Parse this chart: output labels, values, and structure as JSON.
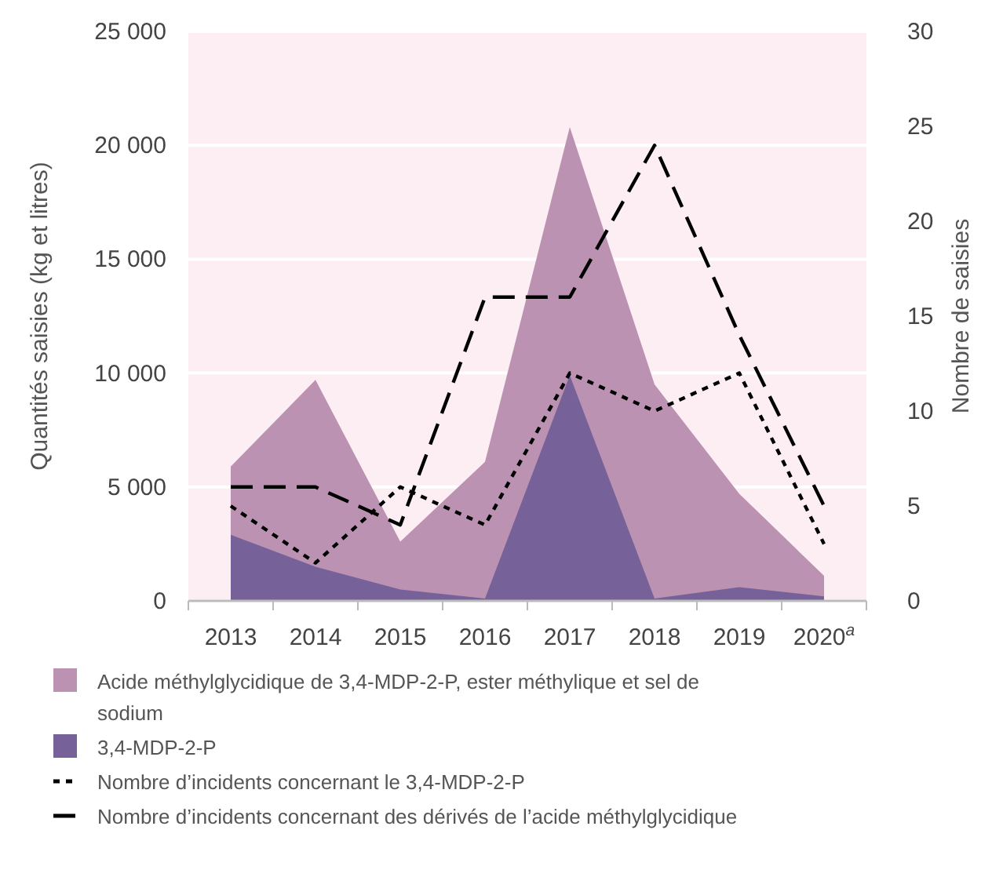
{
  "chart_data": {
    "type": "area",
    "ylabel": "Quantités saisies (kg et litres)",
    "y2label": "Nombre de saisies",
    "categories": [
      "2013",
      "2014",
      "2015",
      "2016",
      "2017",
      "2018",
      "2019",
      "2020$^{a}$"
    ],
    "series": [
      {
        "name": "Acide méthylglycidique de 3,4-MDP-2-P, ester méthylique et sel de sodium",
        "color": "#bb92b1",
        "values": [
          5900,
          9700,
          2600,
          6100,
          20800,
          9500,
          4700,
          1100
        ]
      },
      {
        "name": "3,4-MDP-2-P",
        "color": "#766299",
        "values": [
          2900,
          1500,
          500,
          100,
          9900,
          100,
          600,
          200
        ]
      },
      {
        "name": "Nombre d’incidents concernant le 3,4-MDP-2-P",
        "type": "line",
        "axis": "y2",
        "color": "#000000",
        "line_style": "dotted",
        "values": [
          5,
          2,
          6,
          4,
          12,
          10,
          12,
          3
        ]
      },
      {
        "name": "Nombre d’incidents concernant des dérivés de l’acide méthylglycidique",
        "type": "line",
        "axis": "y2",
        "color": "#000000",
        "line_style": "dashed",
        "values": [
          6,
          6,
          4,
          16,
          16,
          24,
          14,
          5
        ]
      }
    ],
    "ylim": [
      0,
      25000
    ],
    "yticks": [
      {
        "value": 0,
        "label": "0"
      },
      {
        "value": 5000,
        "label": "5 000"
      },
      {
        "value": 10000,
        "label": "10 000"
      },
      {
        "value": 15000,
        "label": "15 000"
      },
      {
        "value": 20000,
        "label": "20 000"
      },
      {
        "value": 25000,
        "label": "25 000"
      }
    ],
    "y2lim": [
      0,
      30
    ],
    "y2ticks": [
      0,
      5,
      10,
      15,
      20,
      25,
      30
    ],
    "grid": "y",
    "legend": "bottom",
    "marker": "none"
  }
}
